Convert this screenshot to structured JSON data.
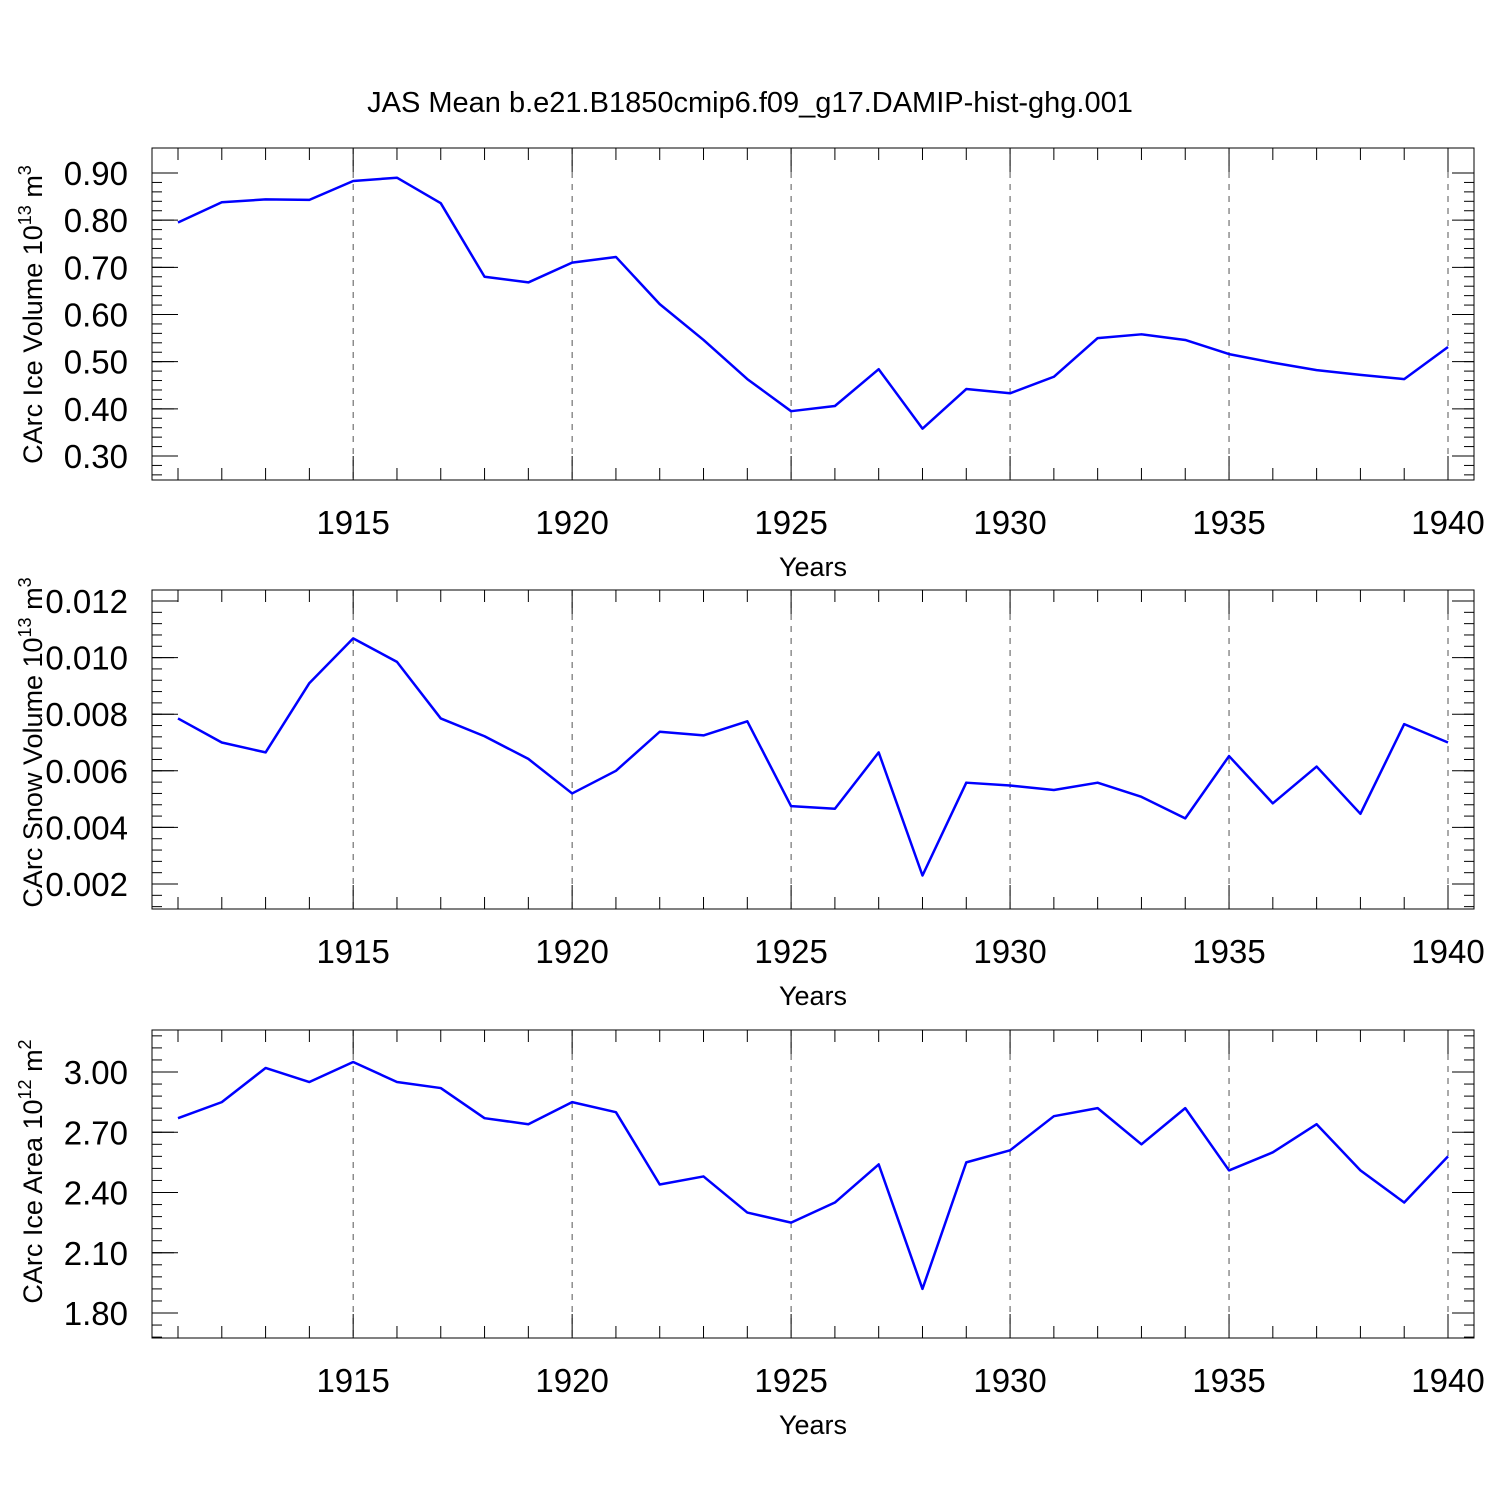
{
  "title": "JAS Mean b.e21.B1850cmip6.f09_g17.DAMIP-hist-ghg.001",
  "colors": {
    "line": "#0000ff",
    "axis": "#000000",
    "grid": "#555555"
  },
  "chart_data": [
    {
      "type": "line",
      "ylabel": "CArc Ice Volume 10",
      "ylabel_exp": "13",
      "ylabel_unit": " m",
      "ylabel_unit_exp": "3",
      "xlabel": "Years",
      "xlim": [
        1911,
        1940
      ],
      "ylim": [
        0.3,
        0.9
      ],
      "yticks": [
        "0.30",
        "0.40",
        "0.50",
        "0.60",
        "0.70",
        "0.80",
        "0.90"
      ],
      "xticks": [
        "1915",
        "1920",
        "1925",
        "1930",
        "1935",
        "1940"
      ],
      "grid": "vertical dashed at major x ticks",
      "x": [
        1911,
        1912,
        1913,
        1914,
        1915,
        1916,
        1917,
        1918,
        1919,
        1920,
        1921,
        1922,
        1923,
        1924,
        1925,
        1926,
        1927,
        1928,
        1929,
        1930,
        1931,
        1932,
        1933,
        1934,
        1935,
        1936,
        1937,
        1938,
        1939,
        1940
      ],
      "series": [
        {
          "values": [
            0.795,
            0.838,
            0.844,
            0.843,
            0.883,
            0.89,
            0.836,
            0.68,
            0.668,
            0.71,
            0.722,
            0.622,
            0.546,
            0.463,
            0.395,
            0.406,
            0.484,
            0.358,
            0.442,
            0.433,
            0.468,
            0.55,
            0.558,
            0.546,
            0.516,
            0.498,
            0.482,
            0.472,
            0.463,
            0.531
          ]
        }
      ]
    },
    {
      "type": "line",
      "ylabel": "CArc Snow Volume 10",
      "ylabel_exp": "13",
      "ylabel_unit": " m",
      "ylabel_unit_exp": "3",
      "xlabel": "Years",
      "xlim": [
        1911,
        1940
      ],
      "ylim": [
        0.002,
        0.012
      ],
      "yticks": [
        "0.002",
        "0.004",
        "0.006",
        "0.008",
        "0.010",
        "0.012"
      ],
      "xticks": [
        "1915",
        "1920",
        "1925",
        "1930",
        "1935",
        "1940"
      ],
      "grid": "vertical dashed at major x ticks",
      "x": [
        1911,
        1912,
        1913,
        1914,
        1915,
        1916,
        1917,
        1918,
        1919,
        1920,
        1921,
        1922,
        1923,
        1924,
        1925,
        1926,
        1927,
        1928,
        1929,
        1930,
        1931,
        1932,
        1933,
        1934,
        1935,
        1936,
        1937,
        1938,
        1939,
        1940
      ],
      "series": [
        {
          "values": [
            0.00785,
            0.007,
            0.00665,
            0.0091,
            0.01068,
            0.00985,
            0.00785,
            0.00722,
            0.00642,
            0.0052,
            0.006,
            0.00738,
            0.00725,
            0.00775,
            0.00475,
            0.00466,
            0.00665,
            0.0023,
            0.00558,
            0.00548,
            0.00532,
            0.00558,
            0.00508,
            0.00432,
            0.00652,
            0.00485,
            0.00615,
            0.00448,
            0.00765,
            0.007
          ]
        }
      ]
    },
    {
      "type": "line",
      "ylabel": "CArc Ice Area 10",
      "ylabel_exp": "12",
      "ylabel_unit": " m",
      "ylabel_unit_exp": "2",
      "xlabel": "Years",
      "xlim": [
        1911,
        1940
      ],
      "ylim": [
        1.8,
        3.2
      ],
      "yticks": [
        "1.80",
        "2.10",
        "2.40",
        "2.70",
        "3.00"
      ],
      "xticks": [
        "1915",
        "1920",
        "1925",
        "1930",
        "1935",
        "1940"
      ],
      "grid": "vertical dashed at major x ticks",
      "x": [
        1911,
        1912,
        1913,
        1914,
        1915,
        1916,
        1917,
        1918,
        1919,
        1920,
        1921,
        1922,
        1923,
        1924,
        1925,
        1926,
        1927,
        1928,
        1929,
        1930,
        1931,
        1932,
        1933,
        1934,
        1935,
        1936,
        1937,
        1938,
        1939,
        1940
      ],
      "series": [
        {
          "values": [
            2.77,
            2.85,
            3.02,
            2.95,
            3.05,
            2.95,
            2.92,
            2.77,
            2.74,
            2.85,
            2.8,
            2.44,
            2.48,
            2.3,
            2.25,
            2.35,
            2.54,
            1.92,
            2.55,
            2.61,
            2.78,
            2.82,
            2.64,
            2.82,
            2.51,
            2.6,
            2.74,
            2.51,
            2.35,
            2.58
          ]
        }
      ]
    }
  ]
}
